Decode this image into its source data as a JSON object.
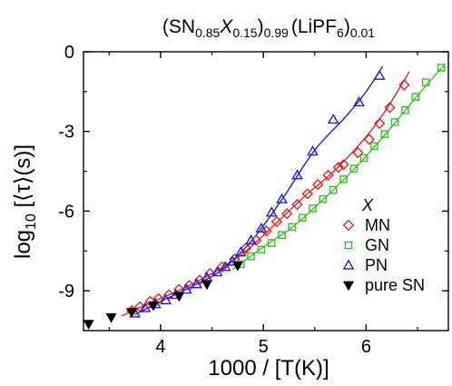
{
  "chart_data": {
    "type": "scatter",
    "title": {
      "part1": "(SN",
      "sub1": "0.85",
      "x": "X",
      "sub2": "0.15",
      "part2": ")",
      "sub3": "0.99",
      "part3": "(LiPF",
      "sub4": "6",
      "part4": ")",
      "sub5": "0.01"
    },
    "xlabel": "1000 / [T(K)]",
    "ylabel": {
      "prefix": "log",
      "sub": "10",
      "suffix": " [⟨τ⟩(s)]"
    },
    "xlim": [
      3.25,
      6.8
    ],
    "ylim": [
      -10.5,
      0
    ],
    "xticks": [
      4,
      5,
      6
    ],
    "yticks": [
      0,
      -3,
      -6,
      -9
    ],
    "ytick_labels": [
      "0",
      "-3",
      "-6",
      "-9"
    ],
    "grid": false,
    "legend": {
      "title": "X",
      "placement": "right"
    },
    "series": [
      {
        "name": "MN",
        "marker": "diamond-open",
        "color": "#e8201c",
        "x": [
          3.72,
          3.8,
          3.9,
          3.98,
          4.08,
          4.18,
          4.28,
          4.38,
          4.48,
          4.6,
          4.72,
          4.83,
          4.93,
          5.03,
          5.13,
          5.23,
          5.33,
          5.43,
          5.53,
          5.63,
          5.73,
          5.78,
          5.92,
          6.03,
          6.13,
          6.23,
          6.37
        ],
        "y": [
          -9.75,
          -9.6,
          -9.4,
          -9.3,
          -9.15,
          -8.95,
          -8.8,
          -8.6,
          -8.35,
          -8.1,
          -7.8,
          -7.4,
          -7.1,
          -6.75,
          -6.4,
          -6.1,
          -5.75,
          -5.35,
          -5.0,
          -4.65,
          -4.35,
          -4.25,
          -3.8,
          -3.3,
          -2.7,
          -2.1,
          -1.25
        ]
      },
      {
        "name": "GN",
        "marker": "square-open",
        "color": "#31c41c",
        "x": [
          4.78,
          4.88,
          4.98,
          5.08,
          5.18,
          5.28,
          5.38,
          5.48,
          5.58,
          5.68,
          5.78,
          5.88,
          5.98,
          6.08,
          6.18,
          6.28,
          6.38,
          6.48,
          6.58,
          6.73
        ],
        "y": [
          -8.0,
          -7.7,
          -7.45,
          -7.2,
          -6.9,
          -6.6,
          -6.25,
          -5.9,
          -5.55,
          -5.2,
          -4.8,
          -4.4,
          -4.0,
          -3.55,
          -3.1,
          -2.65,
          -2.2,
          -1.7,
          -1.15,
          -0.6
        ]
      },
      {
        "name": "PN",
        "marker": "triangle-up-open",
        "color": "#1c1ce8",
        "x": [
          3.75,
          3.85,
          3.95,
          4.05,
          4.15,
          4.25,
          4.35,
          4.45,
          4.55,
          4.63,
          4.7,
          4.78,
          4.88,
          4.98,
          5.08,
          5.18,
          5.33,
          5.48,
          5.68,
          5.93,
          6.13
        ],
        "y": [
          -9.85,
          -9.65,
          -9.5,
          -9.35,
          -9.15,
          -8.95,
          -8.75,
          -8.5,
          -8.3,
          -8.1,
          -7.9,
          -7.55,
          -7.1,
          -6.65,
          -6.05,
          -5.55,
          -4.65,
          -3.75,
          -2.55,
          -1.9,
          -0.9
        ]
      },
      {
        "name": "pure SN",
        "marker": "triangle-down-filled",
        "color": "#000000",
        "x": [
          3.3,
          3.52,
          3.72,
          3.93,
          4.18,
          4.45,
          4.75
        ],
        "y": [
          -10.25,
          -10.0,
          -9.8,
          -9.55,
          -9.2,
          -8.75,
          -8.05
        ]
      }
    ],
    "fit_lines": [
      {
        "series": "MN",
        "x": [
          3.62,
          3.9,
          4.2,
          4.5,
          4.8,
          5.1,
          5.4,
          5.7,
          6.0,
          6.2,
          6.42
        ],
        "y": [
          -9.95,
          -9.45,
          -8.95,
          -8.35,
          -7.6,
          -6.55,
          -5.45,
          -4.45,
          -3.2,
          -2.15,
          -0.75
        ]
      },
      {
        "series": "GN",
        "x": [
          4.7,
          5.0,
          5.3,
          5.6,
          5.9,
          6.2,
          6.5,
          6.77
        ],
        "y": [
          -8.2,
          -7.35,
          -6.55,
          -5.5,
          -4.35,
          -3.05,
          -1.65,
          -0.45
        ]
      },
      {
        "series": "PN",
        "x": [
          3.75,
          4.0,
          4.3,
          4.6,
          4.9,
          5.2,
          5.5,
          5.8,
          6.0,
          6.16
        ],
        "y": [
          -9.9,
          -9.4,
          -8.85,
          -8.2,
          -7.05,
          -5.45,
          -3.7,
          -2.45,
          -1.5,
          -0.55
        ]
      }
    ]
  }
}
